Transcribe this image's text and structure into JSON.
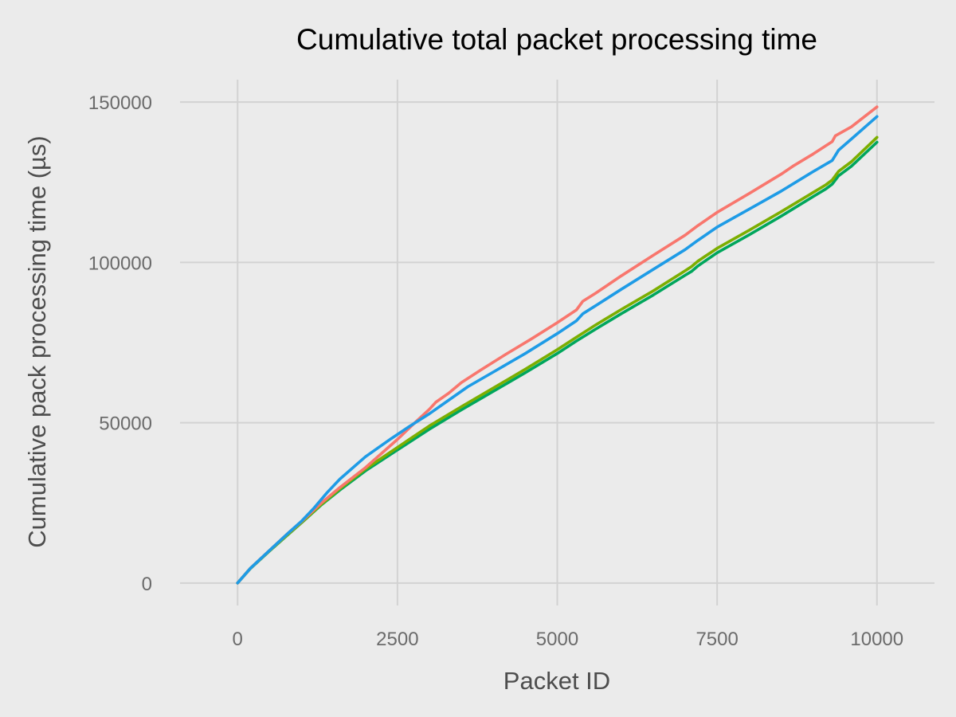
{
  "chart_data": {
    "type": "line",
    "title": "Cumulative total packet processing time",
    "xlabel": "Packet ID",
    "ylabel": "Cumulative pack processing time (µs)",
    "xlim": [
      -900,
      10900
    ],
    "ylim": [
      -7000,
      157000
    ],
    "x_ticks": [
      0,
      2500,
      5000,
      7500,
      10000
    ],
    "x_tick_labels": [
      "0",
      "2500",
      "5000",
      "7500",
      "10000"
    ],
    "y_ticks": [
      0,
      50000,
      100000,
      150000
    ],
    "y_tick_labels": [
      "0",
      "50000",
      "100000",
      "150000"
    ],
    "grid": true,
    "legend": "none",
    "background": "#ebebeb",
    "gridline_color": "#d2d2d2",
    "series": [
      {
        "color": "#00a65c",
        "x": [
          0,
          200,
          500,
          800,
          1000,
          1300,
          1600,
          2000,
          2500,
          3000,
          3500,
          4000,
          4500,
          5000,
          5300,
          5600,
          6000,
          6500,
          7000,
          7100,
          7200,
          7500,
          8000,
          8500,
          9000,
          9200,
          9300,
          9400,
          9600,
          10000
        ],
        "y": [
          0,
          4500,
          10000,
          15300,
          18800,
          24200,
          29000,
          35000,
          41500,
          48000,
          54000,
          59800,
          65600,
          71600,
          75500,
          79200,
          84000,
          89800,
          96000,
          97200,
          98900,
          103000,
          108600,
          114400,
          120500,
          122900,
          124400,
          127000,
          130000,
          137500
        ]
      },
      {
        "color": "#7cae00",
        "x": [
          0,
          200,
          500,
          800,
          1000,
          1300,
          1600,
          2000,
          2500,
          3000,
          3500,
          4000,
          4500,
          5000,
          5300,
          5600,
          6000,
          6500,
          7000,
          7100,
          7200,
          7500,
          8000,
          8500,
          9000,
          9200,
          9300,
          9400,
          9600,
          10000
        ],
        "y": [
          0,
          4600,
          10100,
          15400,
          18900,
          24400,
          29400,
          35600,
          42300,
          49000,
          55000,
          60800,
          66700,
          72800,
          76700,
          80500,
          85300,
          91100,
          97400,
          98700,
          100400,
          104400,
          110000,
          115800,
          121800,
          124200,
          125700,
          128400,
          131400,
          139000
        ]
      },
      {
        "color": "#f8766d",
        "x": [
          0,
          200,
          500,
          800,
          1000,
          1300,
          1600,
          2000,
          2500,
          2800,
          3000,
          3100,
          3300,
          3500,
          3800,
          4200,
          4600,
          5000,
          5300,
          5400,
          5600,
          6000,
          6500,
          7000,
          7200,
          7500,
          8000,
          8500,
          8700,
          9000,
          9300,
          9350,
          9600,
          10000
        ],
        "y": [
          0,
          4600,
          10200,
          15700,
          19200,
          24800,
          29800,
          36000,
          44800,
          50500,
          54200,
          56400,
          59200,
          62500,
          66400,
          71400,
          76200,
          81200,
          85200,
          87900,
          90400,
          95800,
          102200,
          108500,
          111500,
          115600,
          121500,
          127500,
          130200,
          133800,
          137700,
          139500,
          142300,
          148500
        ]
      },
      {
        "color": "#1e9be6",
        "x": [
          0,
          200,
          500,
          800,
          1000,
          1200,
          1400,
          1600,
          2000,
          2400,
          2700,
          3000,
          3300,
          3600,
          4000,
          4500,
          5000,
          5300,
          5400,
          5600,
          6000,
          6500,
          7000,
          7200,
          7500,
          8000,
          8500,
          9000,
          9300,
          9400,
          9600,
          10000
        ],
        "y": [
          0,
          4600,
          10200,
          15700,
          19300,
          23500,
          28200,
          32400,
          39400,
          45000,
          49000,
          52800,
          57000,
          61200,
          65800,
          71600,
          77800,
          81800,
          84000,
          86500,
          91600,
          97800,
          104000,
          106900,
          111000,
          116600,
          122200,
          128300,
          131800,
          135000,
          138500,
          145500
        ]
      }
    ]
  }
}
